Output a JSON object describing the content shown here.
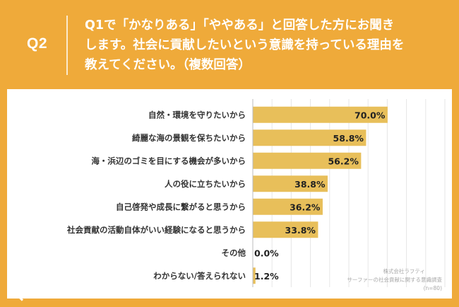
{
  "header": {
    "qnum": "Q2",
    "line1": "Q1で「かなりある」「ややある」と回答した方にお聞き",
    "line2": "します。社会に貢献したいという意識を持っている理由を",
    "line3": "教えてください。（複数回答）"
  },
  "colors": {
    "background": "#EFAA3A",
    "bar": "#E8BF5A",
    "panel": "#FFFFFF"
  },
  "logo": {
    "text": "リサピー",
    "icon": "search-magnifier-icon"
  },
  "source": {
    "line1": "株式会社ラフティ",
    "line2": "サーファーの社会貢献に関する意識調査",
    "line3": "(n=80)"
  },
  "chart_data": {
    "type": "bar",
    "orientation": "horizontal",
    "categories": [
      "自然・環境を守りたいから",
      "綺麗な海の景観を保ちたいから",
      "海・浜辺のゴミを目にする機会が多いから",
      "人の役に立ちたいから",
      "自己啓発や成長に繋がると思うから",
      "社会貢献の活動自体がいい経験になると思うから",
      "その他",
      "わからない/答えられない"
    ],
    "values": [
      70.0,
      58.8,
      56.2,
      38.8,
      36.2,
      33.8,
      0.0,
      1.2
    ],
    "value_labels": [
      "70.0%",
      "58.8%",
      "56.2%",
      "38.8%",
      "36.2%",
      "33.8%",
      "0.0%",
      "1.2%"
    ],
    "xlim": [
      0,
      100
    ],
    "grid": true,
    "legend": "none"
  }
}
